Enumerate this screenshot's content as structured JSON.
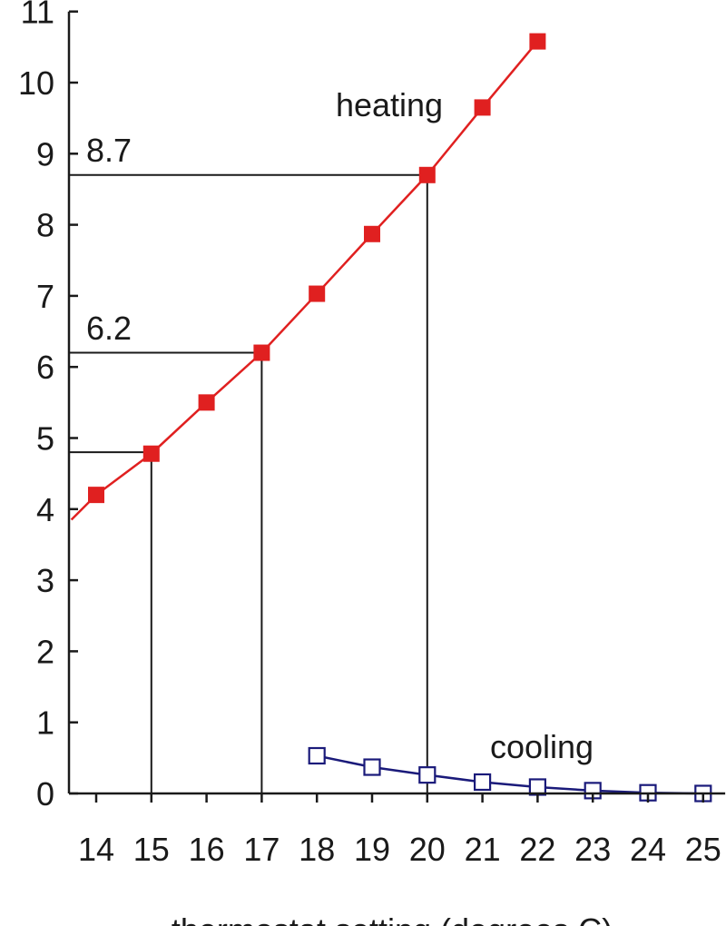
{
  "chart_data": {
    "type": "line",
    "xlabel": "thermostat setting (degrees C)",
    "ylabel": "",
    "xlim": [
      13.55,
      25.4
    ],
    "ylim": [
      0,
      11
    ],
    "x_ticks": [
      14,
      15,
      16,
      17,
      18,
      19,
      20,
      21,
      22,
      23,
      24,
      25
    ],
    "y_ticks": [
      0,
      1,
      2,
      3,
      4,
      5,
      6,
      7,
      8,
      9,
      10,
      11
    ],
    "grid": false,
    "legend": "none",
    "series": [
      {
        "name": "heating",
        "color": "#e02020",
        "marker": "filled-square",
        "trend_start": {
          "x": 13.55,
          "y": 3.85
        },
        "x": [
          14,
          15,
          16,
          17,
          18,
          19,
          20,
          21,
          22
        ],
        "y": [
          4.2,
          4.78,
          5.5,
          6.2,
          7.03,
          7.87,
          8.7,
          9.65,
          10.58
        ]
      },
      {
        "name": "cooling",
        "color": "#1a1a7a",
        "marker": "open-square",
        "x": [
          18,
          19,
          20,
          21,
          22,
          23,
          24,
          25
        ],
        "y": [
          0.53,
          0.37,
          0.26,
          0.16,
          0.09,
          0.04,
          0.01,
          0.0
        ]
      }
    ],
    "annotations": [
      {
        "label": "8.7",
        "x": 20,
        "y": 8.7
      },
      {
        "label": "6.2",
        "x": 17,
        "y": 6.2
      },
      {
        "label": "",
        "x": 15,
        "y": 4.8
      }
    ]
  }
}
